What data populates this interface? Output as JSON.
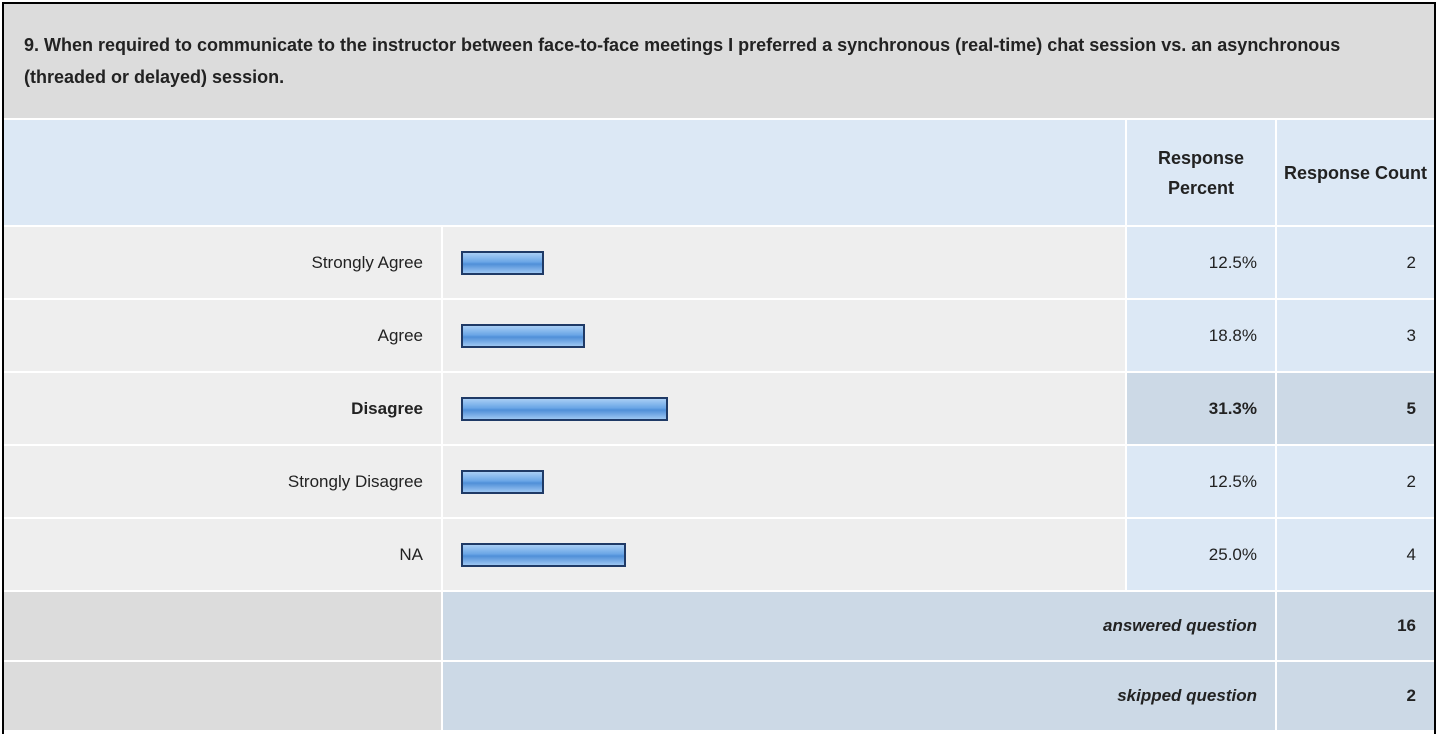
{
  "question": "9. When required to communicate to the instructor between face-to-face meetings I preferred a synchronous (real-time) chat session vs. an asynchronous (threaded or delayed) session.",
  "headers": [
    "Response Percent",
    "Response Count"
  ],
  "rows": [
    {
      "label": "Strongly Agree",
      "percent": 12.5,
      "percent_label": "12.5%",
      "count": 2
    },
    {
      "label": "Agree",
      "percent": 18.8,
      "percent_label": "18.8%",
      "count": 3
    },
    {
      "label": "Disagree",
      "percent": 31.3,
      "percent_label": "31.3%",
      "count": 5
    },
    {
      "label": "Strongly Disagree",
      "percent": 12.5,
      "percent_label": "12.5%",
      "count": 2
    },
    {
      "label": "NA",
      "percent": 25.0,
      "percent_label": "25.0%",
      "count": 4
    }
  ],
  "footer": [
    {
      "label": "answered question",
      "count": 16
    },
    {
      "label": "skipped question",
      "count": 2
    }
  ]
}
